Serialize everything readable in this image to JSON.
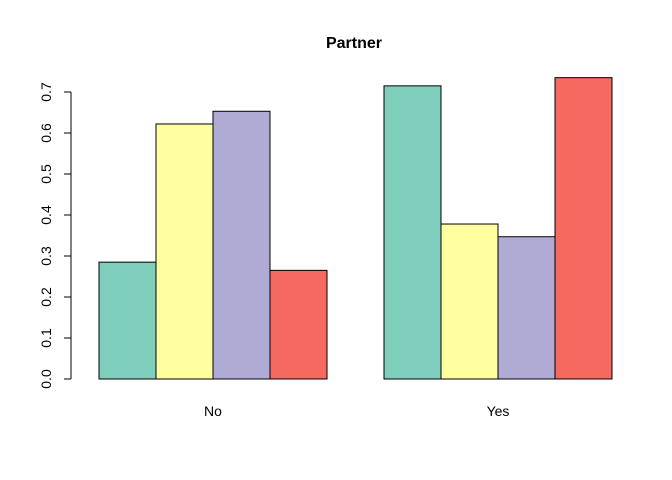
{
  "chart_data": {
    "type": "bar",
    "title": "Partner",
    "xlabel": "",
    "ylabel": "",
    "ylim": [
      0,
      0.7
    ],
    "yticks": [
      "0.0",
      "0.1",
      "0.2",
      "0.3",
      "0.4",
      "0.5",
      "0.6",
      "0.7"
    ],
    "categories": [
      "No",
      "Yes"
    ],
    "grid": false,
    "legend": "none",
    "series": [
      {
        "color": "#7fcdbb",
        "values": [
          0.285,
          0.715
        ]
      },
      {
        "color": "#ffffa0",
        "values": [
          0.622,
          0.378
        ]
      },
      {
        "color": "#b0abd4",
        "values": [
          0.653,
          0.347
        ]
      },
      {
        "color": "#f56960",
        "values": [
          0.265,
          0.735
        ]
      }
    ]
  }
}
